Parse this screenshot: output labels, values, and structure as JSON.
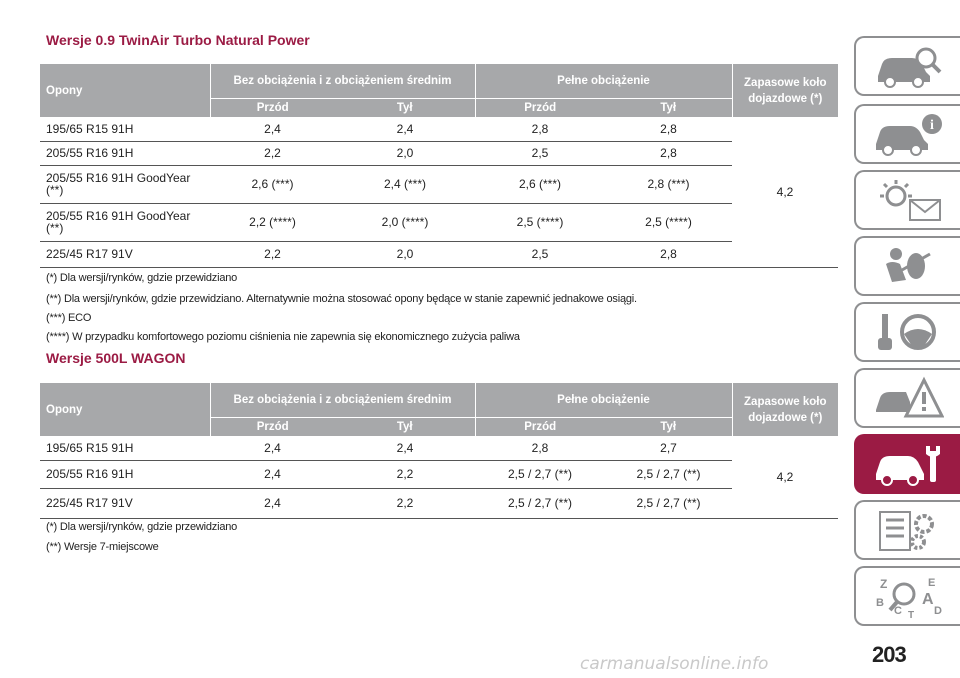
{
  "section1": {
    "title": "Wersje 0.9 TwinAir Turbo Natural Power",
    "headers": {
      "tyres": "Opony",
      "no_load": "Bez obciążenia i z obciążeniem średnim",
      "full_load": "Pełne obciążenie",
      "spare": "Zapasowe koło dojazdowe (*)",
      "front": "Przód",
      "rear": "Tył"
    },
    "rows": [
      {
        "tyre": "195/65 R15 91H",
        "v1": "2,4",
        "v2": "2,4",
        "v3": "2,8",
        "v4": "2,8"
      },
      {
        "tyre": "205/55 R16 91H",
        "v1": "2,2",
        "v2": "2,0",
        "v3": "2,5",
        "v4": "2,8"
      },
      {
        "tyre": "205/55 R16 91H GoodYear (**)",
        "v1": "2,6 (***)",
        "v2": "2,4 (***)",
        "v3": "2,6 (***)",
        "v4": "2,8 (***)"
      },
      {
        "tyre": "205/55 R16 91H GoodYear (**)",
        "v1": "2,2 (****)",
        "v2": "2,0 (****)",
        "v3": "2,5 (****)",
        "v4": "2,5 (****)"
      },
      {
        "tyre": "225/45 R17 91V",
        "v1": "2,2",
        "v2": "2,0",
        "v3": "2,5",
        "v4": "2,8"
      }
    ],
    "spare_value": "4,2",
    "notes": [
      "(*) Dla wersji/rynków, gdzie przewidziano",
      "(**) Dla wersji/rynków, gdzie przewidziano. Alternatywnie można stosować opony będące w stanie zapewnić jednakowe osiągi.",
      "(***) ECO",
      "(****) W przypadku komfortowego poziomu ciśnienia nie zapewnia się ekonomicznego zużycia paliwa"
    ]
  },
  "section2": {
    "title": "Wersje 500L WAGON",
    "headers": {
      "tyres": "Opony",
      "no_load": "Bez obciążenia i z obciążeniem średnim",
      "full_load": "Pełne obciążenie",
      "spare": "Zapasowe koło dojazdowe (*)",
      "front": "Przód",
      "rear": "Tył"
    },
    "rows": [
      {
        "tyre": "195/65 R15 91H",
        "v1": "2,4",
        "v2": "2,4",
        "v3": "2,8",
        "v4": "2,7"
      },
      {
        "tyre": "205/55 R16 91H",
        "v1": "2,4",
        "v2": "2,2",
        "v3": "2,5 / 2,7 (**)",
        "v4": "2,5 / 2,7 (**)"
      },
      {
        "tyre": "225/45 R17 91V",
        "v1": "2,4",
        "v2": "2,2",
        "v3": "2,5 / 2,7 (**)",
        "v4": "2,5 / 2,7 (**)"
      }
    ],
    "spare_value": "4,2",
    "notes": [
      "(*) Dla wersji/rynków, gdzie przewidziano",
      "(**) Wersje 7-miejscowe"
    ]
  },
  "sidebar": {
    "tabs": [
      {
        "icon": "car-magnifier-icon"
      },
      {
        "icon": "car-info-icon"
      },
      {
        "icon": "warning-light-message-icon"
      },
      {
        "icon": "airbag-passenger-icon"
      },
      {
        "icon": "key-steering-wheel-icon"
      },
      {
        "icon": "car-accident-warning-icon"
      },
      {
        "icon": "car-wrench-icon",
        "active": true
      },
      {
        "icon": "specifications-gears-icon"
      },
      {
        "icon": "alphabetical-index-icon"
      }
    ],
    "index_letters": [
      "Z",
      "E",
      "B",
      "A",
      "C",
      "D",
      "T"
    ],
    "active_color": "#9b1b44"
  },
  "page_number": "203",
  "watermark": "carmanualsonline.info"
}
